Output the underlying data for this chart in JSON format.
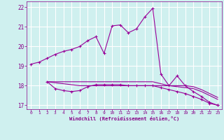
{
  "xlabel": "Windchill (Refroidissement éolien,°C)",
  "background_color": "#cff0ef",
  "grid_color": "#bbdddd",
  "line_color": "#990099",
  "xlim": [
    -0.5,
    23.5
  ],
  "ylim": [
    16.8,
    22.3
  ],
  "xticks": [
    0,
    1,
    2,
    3,
    4,
    5,
    6,
    7,
    8,
    9,
    10,
    11,
    12,
    13,
    14,
    15,
    16,
    17,
    18,
    19,
    20,
    21,
    22,
    23
  ],
  "yticks": [
    17,
    18,
    19,
    20,
    21,
    22
  ],
  "series1_x": [
    0,
    1,
    2,
    3,
    4,
    5,
    6,
    7,
    8,
    9,
    10,
    11,
    12,
    13,
    14,
    15,
    16,
    17,
    18,
    19,
    20,
    21,
    22,
    23
  ],
  "series1_y": [
    19.1,
    19.2,
    19.4,
    19.6,
    19.75,
    19.85,
    20.0,
    20.3,
    20.5,
    19.65,
    21.05,
    21.1,
    20.7,
    20.9,
    21.5,
    21.95,
    18.6,
    18.0,
    18.5,
    18.0,
    17.7,
    17.45,
    17.15,
    17.0
  ],
  "series2_x": [
    2,
    3,
    4,
    5,
    6,
    7,
    8,
    9,
    10,
    11,
    12,
    13,
    14,
    15,
    16,
    17,
    18,
    19,
    20,
    21,
    22,
    23
  ],
  "series2_y": [
    18.2,
    17.85,
    17.75,
    17.7,
    17.75,
    17.95,
    18.05,
    18.05,
    18.05,
    18.05,
    18.0,
    18.0,
    18.0,
    18.0,
    17.9,
    17.8,
    17.7,
    17.6,
    17.45,
    17.3,
    17.1,
    17.0
  ],
  "series3_x": [
    2,
    3,
    4,
    5,
    6,
    7,
    8,
    9,
    10,
    11,
    12,
    13,
    14,
    15,
    16,
    17,
    18,
    19,
    20,
    21,
    22,
    23
  ],
  "series3_y": [
    18.2,
    18.2,
    18.2,
    18.2,
    18.2,
    18.2,
    18.2,
    18.2,
    18.2,
    18.2,
    18.2,
    18.2,
    18.2,
    18.2,
    18.1,
    18.0,
    17.95,
    17.9,
    17.85,
    17.7,
    17.5,
    17.3
  ],
  "series4_x": [
    2,
    3,
    4,
    5,
    6,
    7,
    8,
    9,
    10,
    11,
    12,
    13,
    14,
    15,
    16,
    17,
    18,
    19,
    20,
    21,
    22,
    23
  ],
  "series4_y": [
    18.2,
    18.15,
    18.1,
    18.05,
    18.0,
    18.0,
    18.0,
    18.0,
    18.0,
    18.0,
    18.0,
    18.0,
    18.0,
    18.0,
    18.0,
    18.0,
    18.0,
    18.0,
    17.95,
    17.8,
    17.6,
    17.4
  ]
}
